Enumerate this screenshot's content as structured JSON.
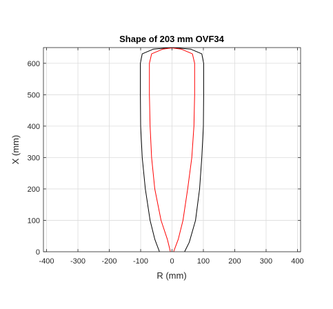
{
  "chart_data": {
    "type": "line",
    "title": "Shape of 203 mm OVF34",
    "xlabel": "R (mm)",
    "ylabel": "X (mm)",
    "xlim": [
      -410,
      410
    ],
    "ylim": [
      0,
      650
    ],
    "xticks": [
      -400,
      -300,
      -200,
      -100,
      0,
      100,
      200,
      300,
      400
    ],
    "yticks": [
      0,
      100,
      200,
      300,
      400,
      500,
      600
    ],
    "grid": true,
    "legend": "none",
    "series": [
      {
        "color": "#000000",
        "points": [
          [
            -40,
            0
          ],
          [
            -55,
            40
          ],
          [
            -70,
            100
          ],
          [
            -85,
            200
          ],
          [
            -95,
            300
          ],
          [
            -100,
            400
          ],
          [
            -101,
            500
          ],
          [
            -101,
            600
          ],
          [
            -95,
            630
          ],
          [
            -60,
            645
          ],
          [
            0,
            650
          ],
          [
            60,
            645
          ],
          [
            95,
            630
          ],
          [
            101,
            600
          ],
          [
            101,
            500
          ],
          [
            100,
            400
          ],
          [
            95,
            300
          ],
          [
            88,
            200
          ],
          [
            75,
            100
          ],
          [
            55,
            30
          ],
          [
            40,
            0
          ]
        ]
      },
      {
        "color": "#ff0000",
        "points": [
          [
            -5,
            0
          ],
          [
            -15,
            40
          ],
          [
            -35,
            100
          ],
          [
            -55,
            200
          ],
          [
            -65,
            300
          ],
          [
            -70,
            400
          ],
          [
            -72,
            500
          ],
          [
            -72,
            600
          ],
          [
            -65,
            630
          ],
          [
            -30,
            645
          ],
          [
            0,
            649
          ],
          [
            30,
            645
          ],
          [
            65,
            630
          ],
          [
            72,
            600
          ],
          [
            72,
            500
          ],
          [
            70,
            400
          ],
          [
            63,
            300
          ],
          [
            50,
            200
          ],
          [
            35,
            100
          ],
          [
            20,
            40
          ],
          [
            5,
            0
          ]
        ]
      }
    ]
  }
}
